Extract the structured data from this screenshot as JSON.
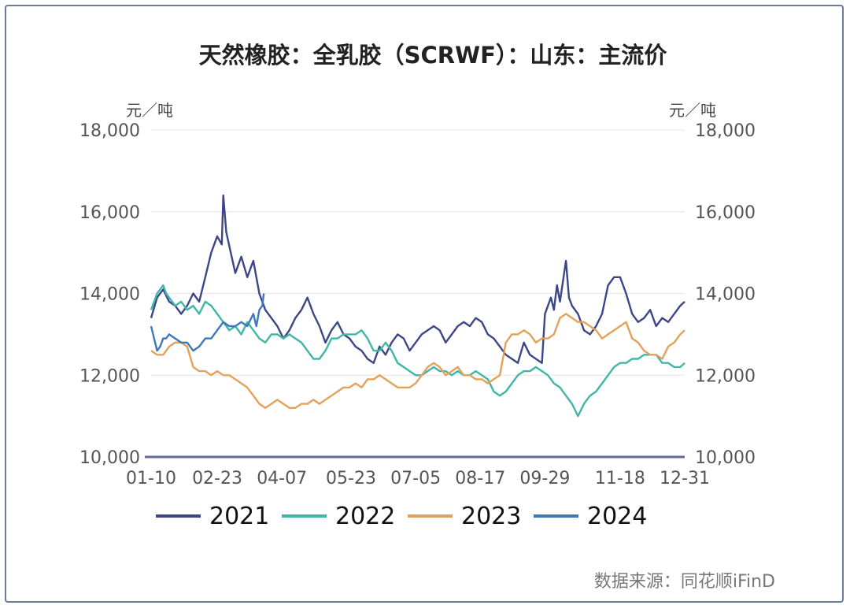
{
  "chart_data": {
    "type": "line",
    "title": "天然橡胶：全乳胶（SCRWF）：山东：主流价",
    "ylabel_left": "元／吨",
    "ylabel_right": "元／吨",
    "ylim": [
      10000,
      18000
    ],
    "yticks": [
      "10,000",
      "12,000",
      "14,000",
      "16,000",
      "18,000"
    ],
    "ytick_values": [
      10000,
      12000,
      14000,
      16000,
      18000
    ],
    "xticks": [
      "01-10",
      "02-23",
      "04-07",
      "05-23",
      "07-05",
      "08-17",
      "09-29",
      "11-18",
      "12-31"
    ],
    "xtick_days": [
      10,
      54,
      97,
      143,
      186,
      229,
      272,
      322,
      365
    ],
    "xlim_days": [
      10,
      365
    ],
    "source": "数据来源：同花顺iFinD",
    "series": [
      {
        "name": "2021",
        "color": "#3d4687",
        "x": [
          10,
          14,
          18,
          22,
          26,
          30,
          34,
          38,
          42,
          46,
          50,
          54,
          57,
          58,
          60,
          63,
          66,
          70,
          74,
          78,
          82,
          86,
          90,
          94,
          98,
          102,
          106,
          110,
          114,
          118,
          122,
          126,
          130,
          134,
          138,
          142,
          146,
          150,
          154,
          158,
          162,
          166,
          170,
          174,
          178,
          182,
          186,
          190,
          194,
          198,
          202,
          206,
          210,
          214,
          218,
          222,
          226,
          230,
          234,
          238,
          242,
          246,
          250,
          254,
          258,
          262,
          266,
          270,
          272,
          274,
          276,
          278,
          280,
          282,
          284,
          286,
          288,
          290,
          294,
          298,
          302,
          306,
          310,
          314,
          318,
          322,
          326,
          330,
          334,
          338,
          342,
          346,
          350,
          354,
          358,
          362,
          365
        ],
        "y": [
          13400,
          13900,
          14100,
          13800,
          13700,
          13500,
          13700,
          14000,
          13800,
          14400,
          15000,
          15400,
          15200,
          16400,
          15500,
          15000,
          14500,
          14900,
          14400,
          14800,
          14000,
          13600,
          13400,
          13200,
          12900,
          13100,
          13400,
          13600,
          13900,
          13500,
          13200,
          12800,
          13100,
          13300,
          13000,
          12900,
          12700,
          12600,
          12400,
          12300,
          12700,
          12500,
          12800,
          13000,
          12900,
          12600,
          12800,
          13000,
          13100,
          13200,
          13100,
          12800,
          13000,
          13200,
          13300,
          13200,
          13400,
          13300,
          13000,
          12900,
          12700,
          12500,
          12400,
          12300,
          12800,
          12500,
          12400,
          12300,
          13500,
          13700,
          13900,
          13600,
          14200,
          13800,
          14300,
          14800,
          13900,
          13700,
          13500,
          13100,
          13000,
          13200,
          13500,
          14200,
          14400,
          14400,
          14000,
          13500,
          13300,
          13400,
          13600,
          13200,
          13400,
          13300,
          13500,
          13700,
          13800
        ]
      },
      {
        "name": "2022",
        "color": "#3fb6a6",
        "x": [
          10,
          12,
          14,
          16,
          18,
          20,
          22,
          26,
          30,
          34,
          38,
          42,
          46,
          50,
          54,
          58,
          62,
          66,
          70,
          74,
          78,
          82,
          86,
          90,
          94,
          98,
          102,
          106,
          110,
          114,
          118,
          122,
          126,
          130,
          134,
          138,
          142,
          146,
          150,
          154,
          158,
          162,
          166,
          170,
          174,
          178,
          182,
          186,
          190,
          194,
          198,
          202,
          206,
          210,
          214,
          218,
          222,
          226,
          230,
          234,
          238,
          242,
          246,
          250,
          254,
          258,
          262,
          266,
          270,
          274,
          278,
          282,
          286,
          290,
          294,
          298,
          302,
          306,
          310,
          314,
          318,
          322,
          326,
          330,
          334,
          338,
          342,
          346,
          350,
          354,
          358,
          362,
          365
        ],
        "y": [
          13600,
          13800,
          14000,
          14100,
          14200,
          14000,
          13900,
          13700,
          13800,
          13600,
          13700,
          13500,
          13800,
          13700,
          13500,
          13300,
          13100,
          13200,
          13000,
          13300,
          13100,
          12900,
          12800,
          13000,
          13000,
          12900,
          13000,
          12900,
          12800,
          12600,
          12400,
          12400,
          12600,
          12900,
          12900,
          13000,
          13000,
          13000,
          13100,
          12900,
          12600,
          12600,
          12800,
          12600,
          12300,
          12200,
          12100,
          12000,
          12000,
          12100,
          12200,
          12100,
          12100,
          12000,
          12100,
          12000,
          12000,
          12100,
          12000,
          11900,
          11600,
          11500,
          11600,
          11800,
          12000,
          12100,
          12100,
          12200,
          12100,
          12000,
          11800,
          11700,
          11500,
          11300,
          11000,
          11300,
          11500,
          11600,
          11800,
          12000,
          12200,
          12300,
          12300,
          12400,
          12400,
          12500,
          12500,
          12500,
          12300,
          12300,
          12200,
          12200,
          12300
        ]
      },
      {
        "name": "2023",
        "color": "#e4a15a",
        "x": [
          10,
          14,
          18,
          22,
          26,
          30,
          34,
          38,
          42,
          46,
          50,
          54,
          58,
          62,
          66,
          70,
          74,
          78,
          82,
          86,
          90,
          94,
          98,
          102,
          106,
          110,
          114,
          118,
          122,
          126,
          130,
          134,
          138,
          142,
          146,
          150,
          154,
          158,
          162,
          166,
          170,
          174,
          178,
          182,
          186,
          190,
          194,
          198,
          202,
          206,
          210,
          214,
          218,
          222,
          226,
          230,
          234,
          238,
          242,
          246,
          250,
          254,
          258,
          262,
          266,
          270,
          274,
          278,
          282,
          286,
          290,
          294,
          298,
          302,
          306,
          310,
          314,
          318,
          322,
          326,
          330,
          334,
          338,
          342,
          346,
          350,
          354,
          358,
          362,
          365
        ],
        "y": [
          12600,
          12500,
          12500,
          12700,
          12800,
          12800,
          12700,
          12200,
          12100,
          12100,
          12000,
          12100,
          12000,
          12000,
          11900,
          11800,
          11700,
          11500,
          11300,
          11200,
          11300,
          11400,
          11300,
          11200,
          11200,
          11300,
          11300,
          11400,
          11300,
          11400,
          11500,
          11600,
          11700,
          11700,
          11800,
          11700,
          11900,
          11900,
          12000,
          11900,
          11800,
          11700,
          11700,
          11700,
          11800,
          12000,
          12200,
          12300,
          12200,
          12000,
          12100,
          12200,
          12000,
          12000,
          11900,
          11900,
          11800,
          11900,
          12000,
          12800,
          13000,
          13000,
          13100,
          13000,
          12800,
          12900,
          12900,
          13000,
          13400,
          13500,
          13400,
          13300,
          13300,
          13200,
          13100,
          12900,
          13000,
          13100,
          13200,
          13300,
          12900,
          12800,
          12600,
          12500,
          12500,
          12400,
          12700,
          12800,
          13000,
          13100
        ]
      },
      {
        "name": "2024",
        "color": "#3f78b8",
        "x": [
          10,
          12,
          14,
          16,
          18,
          20,
          22,
          26,
          30,
          34,
          38,
          42,
          46,
          50,
          54,
          58,
          62,
          66,
          70,
          74,
          78,
          80,
          82,
          84,
          85
        ],
        "y": [
          13200,
          12900,
          12600,
          12700,
          12900,
          12900,
          13000,
          12900,
          12800,
          12800,
          12600,
          12700,
          12900,
          12900,
          13100,
          13300,
          13200,
          13200,
          13300,
          13200,
          13500,
          13200,
          13600,
          13700,
          14000
        ]
      }
    ]
  }
}
